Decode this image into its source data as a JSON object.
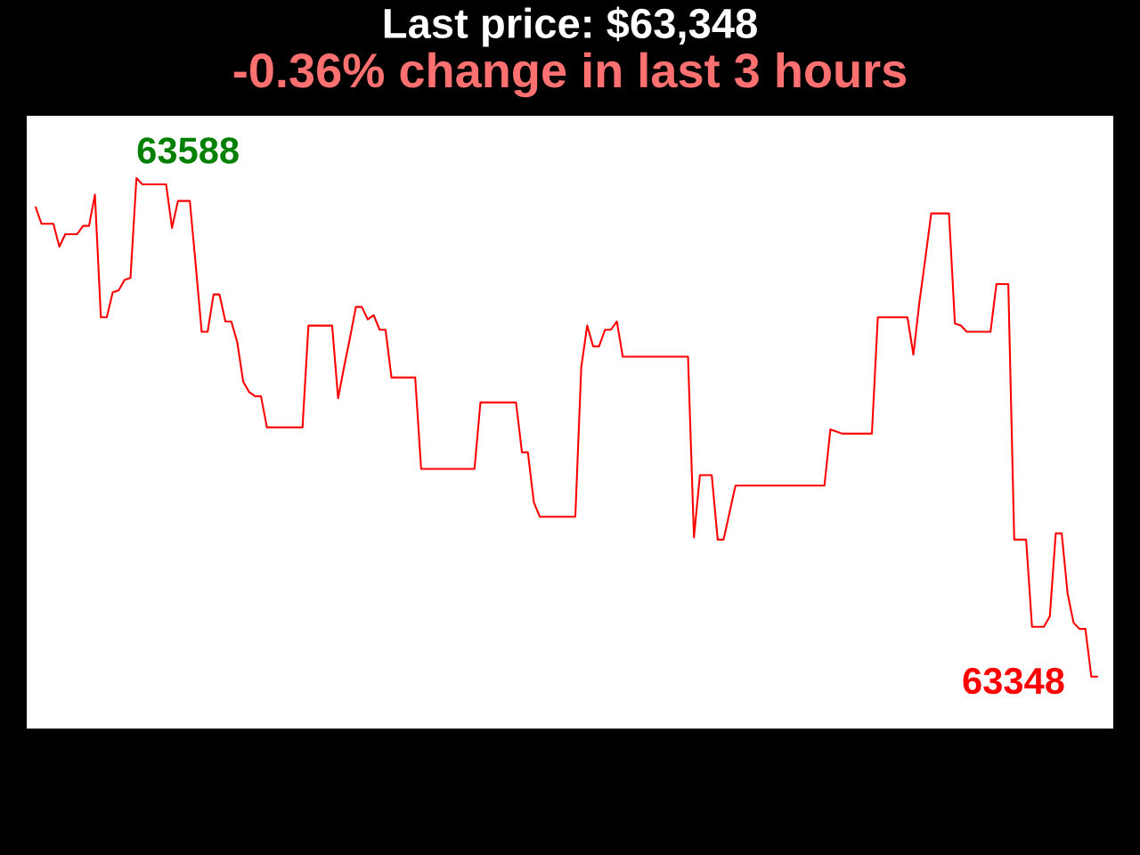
{
  "chart_data": {
    "type": "line",
    "title": "Last price: $63,348",
    "subtitle": "-0.36% change in last 3 hours",
    "categories": [
      null,
      null,
      null,
      null,
      null,
      null,
      null,
      null,
      null,
      null,
      null,
      null,
      null,
      null,
      null,
      null,
      null,
      null,
      null,
      null,
      null,
      null,
      null,
      null,
      null,
      null,
      null,
      null,
      null,
      null,
      null,
      null,
      null,
      null,
      null,
      null,
      null,
      null,
      null,
      null,
      null,
      null,
      null,
      null,
      null,
      null,
      null,
      null,
      null,
      null,
      null,
      null,
      null,
      null,
      null,
      null,
      null,
      null,
      null,
      null,
      null,
      null,
      null,
      null,
      null,
      null,
      null,
      null,
      null,
      null,
      null,
      null,
      null,
      null,
      null,
      null,
      null,
      null,
      null,
      null,
      null,
      null,
      null,
      null,
      null,
      null,
      null,
      null,
      null,
      null,
      null,
      null,
      null,
      null,
      null,
      null,
      null,
      null,
      null,
      null,
      null,
      null,
      null,
      null,
      null,
      null,
      null,
      null,
      null,
      null,
      null,
      null,
      null,
      null,
      null,
      null,
      null,
      null,
      null,
      null,
      null,
      null,
      null,
      null,
      null,
      null,
      null,
      null,
      null,
      null,
      null,
      null,
      null,
      null,
      null,
      null,
      null,
      null,
      null,
      null,
      null,
      null,
      null,
      null,
      null,
      null,
      null,
      null,
      null,
      null,
      null,
      null,
      null,
      null,
      null,
      null,
      null,
      null,
      null,
      null,
      null,
      null,
      null,
      null,
      null,
      null,
      null,
      null,
      null,
      null,
      null,
      null,
      null,
      null,
      null,
      null,
      null,
      null,
      null,
      null
    ],
    "series": [
      {
        "color": "#ff0000",
        "values": [
          63574,
          63566,
          63566,
          63566,
          63555,
          63561,
          63561,
          63561,
          63565,
          63565,
          63580,
          63521,
          63521,
          63533,
          63534,
          63539,
          63540,
          63588,
          63585,
          63585,
          63585,
          63585,
          63585,
          63564,
          63577,
          63577,
          63577,
          63546,
          63514,
          63514,
          63532,
          63532,
          63519,
          63519,
          63509,
          63490,
          63485,
          63483,
          63483,
          63468,
          63468,
          63468,
          63468,
          63468,
          63468,
          63468,
          63517,
          63517,
          63517,
          63517,
          63517,
          63482,
          63497,
          63511,
          63526,
          63526,
          63520,
          63522,
          63515,
          63515,
          63492,
          63492,
          63492,
          63492,
          63492,
          63448,
          63448,
          63448,
          63448,
          63448,
          63448,
          63448,
          63448,
          63448,
          63448,
          63480,
          63480,
          63480,
          63480,
          63480,
          63480,
          63480,
          63456,
          63456,
          63432,
          63425,
          63425,
          63425,
          63425,
          63425,
          63425,
          63425,
          63497,
          63517,
          63507,
          63507,
          63515,
          63515,
          63519,
          63502,
          63502,
          63502,
          63502,
          63502,
          63502,
          63502,
          63502,
          63502,
          63502,
          63502,
          63502,
          63415,
          63445,
          63445,
          63445,
          63414,
          63414,
          63427,
          63440,
          63440,
          63440,
          63440,
          63440,
          63440,
          63440,
          63440,
          63440,
          63440,
          63440,
          63440,
          63440,
          63440,
          63440,
          63440,
          63467,
          63466,
          63465,
          63465,
          63465,
          63465,
          63465,
          63465,
          63521,
          63521,
          63521,
          63521,
          63521,
          63521,
          63503,
          63528,
          63549,
          63571,
          63571,
          63571,
          63571,
          63518,
          63517,
          63514,
          63514,
          63514,
          63514,
          63514,
          63537,
          63537,
          63537,
          63414,
          63414,
          63414,
          63372,
          63372,
          63372,
          63377,
          63417,
          63417,
          63388,
          63374,
          63371,
          63371,
          63348,
          63348
        ],
        "value_labels": [
          null,
          null,
          null,
          null,
          null,
          null,
          null,
          null,
          null,
          null,
          null,
          null,
          null,
          null,
          null,
          null,
          null,
          "63588",
          null,
          null,
          null,
          null,
          null,
          null,
          null,
          null,
          null,
          null,
          null,
          null,
          null,
          null,
          null,
          null,
          null,
          null,
          null,
          null,
          null,
          null,
          null,
          null,
          null,
          null,
          null,
          null,
          null,
          null,
          null,
          null,
          null,
          null,
          null,
          null,
          null,
          null,
          null,
          null,
          null,
          null,
          null,
          null,
          null,
          null,
          null,
          null,
          null,
          null,
          null,
          null,
          null,
          null,
          null,
          null,
          null,
          null,
          null,
          null,
          null,
          null,
          null,
          null,
          null,
          null,
          null,
          null,
          null,
          null,
          null,
          null,
          null,
          null,
          null,
          null,
          null,
          null,
          null,
          null,
          null,
          null,
          null,
          null,
          null,
          null,
          null,
          null,
          null,
          null,
          null,
          null,
          null,
          null,
          null,
          null,
          null,
          null,
          null,
          null,
          null,
          null,
          null,
          null,
          null,
          null,
          null,
          null,
          null,
          null,
          null,
          null,
          null,
          null,
          null,
          null,
          null,
          null,
          null,
          null,
          null,
          null,
          null,
          null,
          null,
          null,
          null,
          null,
          null,
          null,
          null,
          null,
          null,
          null,
          null,
          null,
          null,
          null,
          null,
          null,
          null,
          null,
          null,
          null,
          null,
          null,
          null,
          null,
          null,
          null,
          null,
          null,
          null,
          null,
          null,
          null,
          null,
          null,
          null,
          null,
          null,
          "63348"
        ]
      }
    ],
    "legend": false,
    "tick_labels": false
  }
}
